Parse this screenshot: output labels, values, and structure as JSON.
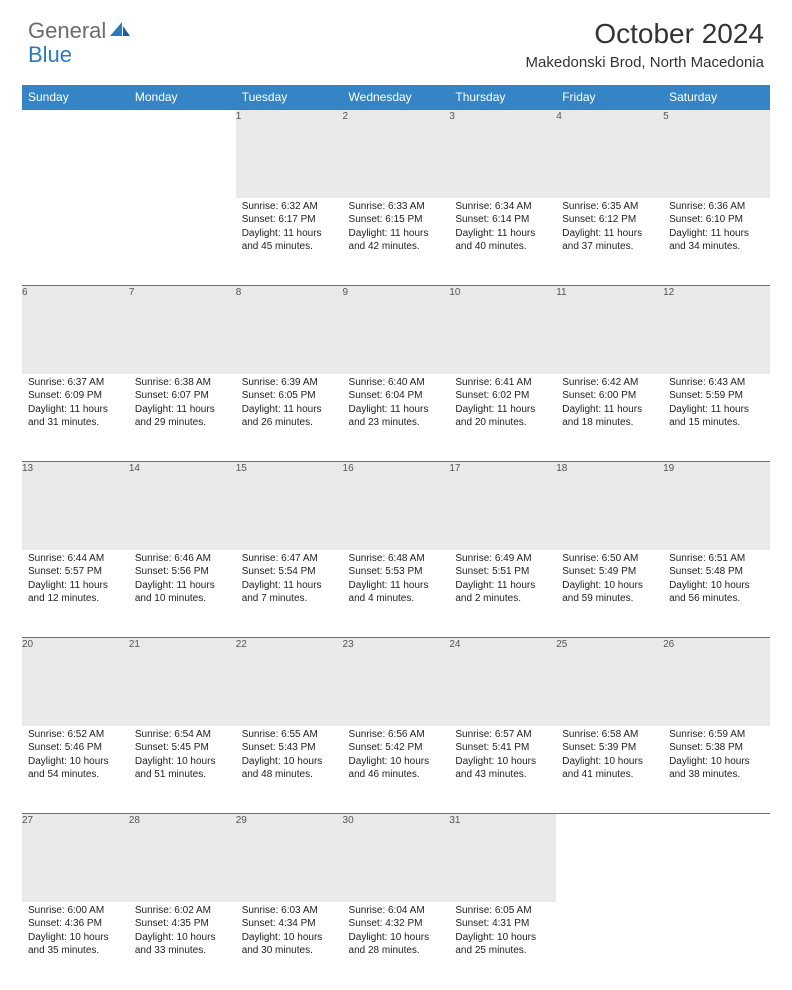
{
  "logo": {
    "general": "General",
    "blue": "Blue"
  },
  "title": "October 2024",
  "location": "Makedonski Brod, North Macedonia",
  "colors": {
    "header_bg": "#3585c6",
    "header_text": "#ffffff",
    "daynum_bg": "#e9e9e9",
    "border": "#3b7fb5",
    "logo_gray": "#6b6b6b",
    "logo_blue": "#2a7ac0"
  },
  "weekdays": [
    "Sunday",
    "Monday",
    "Tuesday",
    "Wednesday",
    "Thursday",
    "Friday",
    "Saturday"
  ],
  "weeks": [
    [
      null,
      null,
      {
        "n": "1",
        "sr": "6:32 AM",
        "ss": "6:17 PM",
        "dl": "11 hours and 45 minutes."
      },
      {
        "n": "2",
        "sr": "6:33 AM",
        "ss": "6:15 PM",
        "dl": "11 hours and 42 minutes."
      },
      {
        "n": "3",
        "sr": "6:34 AM",
        "ss": "6:14 PM",
        "dl": "11 hours and 40 minutes."
      },
      {
        "n": "4",
        "sr": "6:35 AM",
        "ss": "6:12 PM",
        "dl": "11 hours and 37 minutes."
      },
      {
        "n": "5",
        "sr": "6:36 AM",
        "ss": "6:10 PM",
        "dl": "11 hours and 34 minutes."
      }
    ],
    [
      {
        "n": "6",
        "sr": "6:37 AM",
        "ss": "6:09 PM",
        "dl": "11 hours and 31 minutes."
      },
      {
        "n": "7",
        "sr": "6:38 AM",
        "ss": "6:07 PM",
        "dl": "11 hours and 29 minutes."
      },
      {
        "n": "8",
        "sr": "6:39 AM",
        "ss": "6:05 PM",
        "dl": "11 hours and 26 minutes."
      },
      {
        "n": "9",
        "sr": "6:40 AM",
        "ss": "6:04 PM",
        "dl": "11 hours and 23 minutes."
      },
      {
        "n": "10",
        "sr": "6:41 AM",
        "ss": "6:02 PM",
        "dl": "11 hours and 20 minutes."
      },
      {
        "n": "11",
        "sr": "6:42 AM",
        "ss": "6:00 PM",
        "dl": "11 hours and 18 minutes."
      },
      {
        "n": "12",
        "sr": "6:43 AM",
        "ss": "5:59 PM",
        "dl": "11 hours and 15 minutes."
      }
    ],
    [
      {
        "n": "13",
        "sr": "6:44 AM",
        "ss": "5:57 PM",
        "dl": "11 hours and 12 minutes."
      },
      {
        "n": "14",
        "sr": "6:46 AM",
        "ss": "5:56 PM",
        "dl": "11 hours and 10 minutes."
      },
      {
        "n": "15",
        "sr": "6:47 AM",
        "ss": "5:54 PM",
        "dl": "11 hours and 7 minutes."
      },
      {
        "n": "16",
        "sr": "6:48 AM",
        "ss": "5:53 PM",
        "dl": "11 hours and 4 minutes."
      },
      {
        "n": "17",
        "sr": "6:49 AM",
        "ss": "5:51 PM",
        "dl": "11 hours and 2 minutes."
      },
      {
        "n": "18",
        "sr": "6:50 AM",
        "ss": "5:49 PM",
        "dl": "10 hours and 59 minutes."
      },
      {
        "n": "19",
        "sr": "6:51 AM",
        "ss": "5:48 PM",
        "dl": "10 hours and 56 minutes."
      }
    ],
    [
      {
        "n": "20",
        "sr": "6:52 AM",
        "ss": "5:46 PM",
        "dl": "10 hours and 54 minutes."
      },
      {
        "n": "21",
        "sr": "6:54 AM",
        "ss": "5:45 PM",
        "dl": "10 hours and 51 minutes."
      },
      {
        "n": "22",
        "sr": "6:55 AM",
        "ss": "5:43 PM",
        "dl": "10 hours and 48 minutes."
      },
      {
        "n": "23",
        "sr": "6:56 AM",
        "ss": "5:42 PM",
        "dl": "10 hours and 46 minutes."
      },
      {
        "n": "24",
        "sr": "6:57 AM",
        "ss": "5:41 PM",
        "dl": "10 hours and 43 minutes."
      },
      {
        "n": "25",
        "sr": "6:58 AM",
        "ss": "5:39 PM",
        "dl": "10 hours and 41 minutes."
      },
      {
        "n": "26",
        "sr": "6:59 AM",
        "ss": "5:38 PM",
        "dl": "10 hours and 38 minutes."
      }
    ],
    [
      {
        "n": "27",
        "sr": "6:00 AM",
        "ss": "4:36 PM",
        "dl": "10 hours and 35 minutes."
      },
      {
        "n": "28",
        "sr": "6:02 AM",
        "ss": "4:35 PM",
        "dl": "10 hours and 33 minutes."
      },
      {
        "n": "29",
        "sr": "6:03 AM",
        "ss": "4:34 PM",
        "dl": "10 hours and 30 minutes."
      },
      {
        "n": "30",
        "sr": "6:04 AM",
        "ss": "4:32 PM",
        "dl": "10 hours and 28 minutes."
      },
      {
        "n": "31",
        "sr": "6:05 AM",
        "ss": "4:31 PM",
        "dl": "10 hours and 25 minutes."
      },
      null,
      null
    ]
  ],
  "labels": {
    "sunrise": "Sunrise:",
    "sunset": "Sunset:",
    "daylight": "Daylight:"
  }
}
